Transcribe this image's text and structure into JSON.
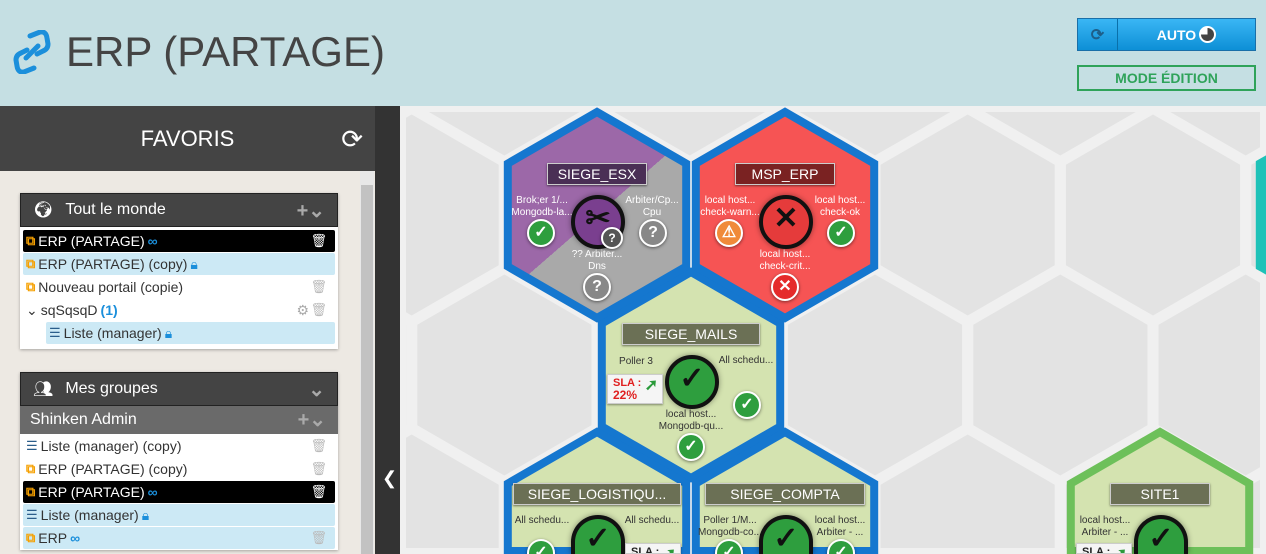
{
  "header": {
    "title": "ERP (PARTAGE)",
    "refresh_mode": "AUTO",
    "edit_mode": "MODE ÉDITION"
  },
  "sidebar": {
    "title": "FAVORIS",
    "everyone": {
      "title": "Tout le monde",
      "items": [
        {
          "label": "ERP (PARTAGE)",
          "type": "portal",
          "badge": "link",
          "state": "selected"
        },
        {
          "label": "ERP (PARTAGE) (copy)",
          "type": "portal",
          "badge": "lock",
          "state": "highlight"
        },
        {
          "label": "Nouveau portail (copie)",
          "type": "portal",
          "badge": "",
          "state": ""
        },
        {
          "label": "sqSqsqD",
          "count": "(1)",
          "type": "folder"
        },
        {
          "label": "Liste (manager)",
          "type": "list",
          "badge": "lock",
          "state": "highlight"
        }
      ]
    },
    "groups": {
      "title": "Mes groupes",
      "group": "Shinken Admin",
      "items": [
        {
          "label": "Liste (manager) (copy)",
          "type": "list",
          "badge": "",
          "state": ""
        },
        {
          "label": "ERP (PARTAGE) (copy)",
          "type": "portal",
          "badge": "",
          "state": ""
        },
        {
          "label": "ERP (PARTAGE)",
          "type": "portal",
          "badge": "link",
          "state": "selected"
        },
        {
          "label": "Liste (manager)",
          "type": "list",
          "badge": "lock",
          "state": "highlight"
        },
        {
          "label": "ERP",
          "type": "portal",
          "badge": "link",
          "state": "highlight"
        }
      ]
    }
  },
  "colors": {
    "ok": "#2e9e3e",
    "critical": "#e52b2b",
    "warning": "#f08a3a",
    "unknown": "#888888",
    "header_bg": "#c5dfe3",
    "accent": "#1b8fdb"
  },
  "tiles": [
    {
      "name": "SIEGE_ESX",
      "status": "maintenance/unknown",
      "items": [
        {
          "label": "Brok;er 1/...",
          "sub": "Mongodb-la...",
          "status": "ok"
        },
        {
          "label": "Arbiter/Cp...",
          "sub": "Cpu",
          "status": "unknown"
        },
        {
          "label": "?? Arbiter...",
          "sub": "Dns",
          "status": "unknown"
        }
      ]
    },
    {
      "name": "MSP_ERP",
      "status": "critical",
      "items": [
        {
          "label": "local host...",
          "sub": "check-warn...",
          "status": "warning"
        },
        {
          "label": "local host...",
          "sub": "check-ok",
          "status": "ok"
        },
        {
          "label": "local host...",
          "sub": "check-crit...",
          "status": "critical"
        }
      ]
    },
    {
      "name": "SIEGE_MAILS",
      "status": "ok",
      "sla_label": "SLA :",
      "sla": "22%",
      "items": [
        {
          "label": "Poller 3",
          "sub": ""
        },
        {
          "label": "All schedu...",
          "sub": "",
          "status": "ok"
        },
        {
          "label": "local host...",
          "sub": "Mongodb-qu...",
          "status": "ok"
        }
      ]
    },
    {
      "name": "SIEGE_LOGISTIQU...",
      "status": "ok",
      "sla_label": "SLA :",
      "items": [
        {
          "label": "All schedu...",
          "sub": "",
          "status": "ok"
        },
        {
          "label": "All schedu...",
          "sub": ""
        }
      ]
    },
    {
      "name": "SIEGE_COMPTA",
      "status": "ok",
      "items": [
        {
          "label": "Poller 1/M...",
          "sub": "Mongodb-co...",
          "status": "ok"
        },
        {
          "label": "local host...",
          "sub": "Arbiter - ...",
          "status": "ok"
        }
      ]
    },
    {
      "name": "SITE1",
      "status": "ok",
      "sla_label": "SLA :",
      "items": [
        {
          "label": "local host...",
          "sub": "Arbiter - ..."
        }
      ]
    }
  ]
}
